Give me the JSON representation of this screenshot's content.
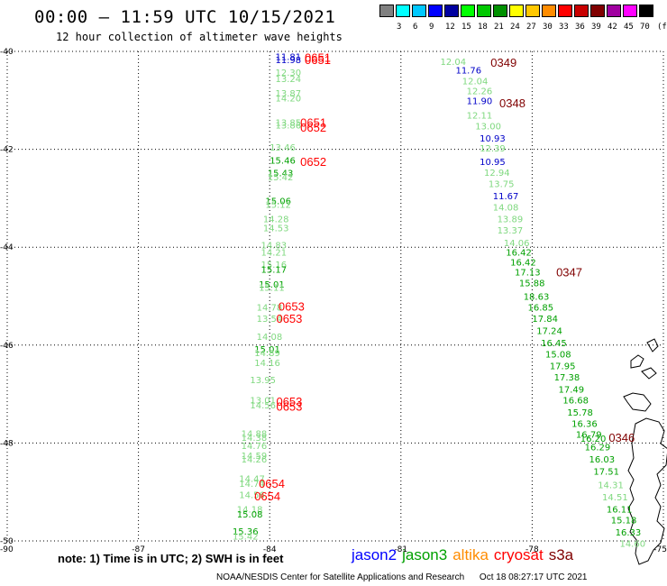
{
  "header": {
    "title": "00:00 – 11:59 UTC 10/15/2021",
    "subtitle": "12 hour collection of altimeter wave heights"
  },
  "color_scale": {
    "unit": "(ft)",
    "levels": [
      {
        "label": "",
        "color": "#808080"
      },
      {
        "label": "3",
        "color": "#00ffff"
      },
      {
        "label": "6",
        "color": "#00c8ff"
      },
      {
        "label": "9",
        "color": "#0000ff"
      },
      {
        "label": "12",
        "color": "#0000a0"
      },
      {
        "label": "15",
        "color": "#00ff00"
      },
      {
        "label": "18",
        "color": "#00c800"
      },
      {
        "label": "21",
        "color": "#009000"
      },
      {
        "label": "24",
        "color": "#ffff00"
      },
      {
        "label": "27",
        "color": "#ffc800"
      },
      {
        "label": "30",
        "color": "#ff8c00"
      },
      {
        "label": "33",
        "color": "#ff0000"
      },
      {
        "label": "36",
        "color": "#c80000"
      },
      {
        "label": "39",
        "color": "#800000"
      },
      {
        "label": "42",
        "color": "#a000a0"
      },
      {
        "label": "45",
        "color": "#ff00ff"
      },
      {
        "label": "70",
        "color": "#000000"
      }
    ]
  },
  "axes": {
    "x_ticks": [
      "-90",
      "-87",
      "-84",
      "-81",
      "-78",
      "-75"
    ],
    "y_ticks": [
      "-40",
      "-42",
      "-44",
      "-46",
      "-48",
      "-50"
    ],
    "x_values": [
      -90,
      -87,
      -84,
      -81,
      -78,
      -75
    ],
    "y_values": [
      -40,
      -42,
      -44,
      -46,
      -48,
      -50
    ]
  },
  "track_points": [
    {
      "lon": -83.87,
      "lat": -40.1,
      "label": "11.81",
      "color": "#0000c8"
    },
    {
      "lon": -83.87,
      "lat": -40.17,
      "label": "11.98",
      "color": "#0000c8"
    },
    {
      "lon": -83.87,
      "lat": -40.42,
      "label": "12.30",
      "color": "#7fd87f"
    },
    {
      "lon": -83.87,
      "lat": -40.55,
      "label": "13.24",
      "color": "#7fd87f"
    },
    {
      "lon": -83.87,
      "lat": -40.85,
      "label": "13.87",
      "color": "#7fd87f"
    },
    {
      "lon": -83.87,
      "lat": -40.95,
      "label": "14.20",
      "color": "#7fd87f"
    },
    {
      "lon": -83.87,
      "lat": -41.45,
      "label": "13.85",
      "color": "#7fd87f"
    },
    {
      "lon": -83.87,
      "lat": -41.5,
      "label": "13.86",
      "color": "#7fd87f"
    },
    {
      "lon": -84.0,
      "lat": -41.95,
      "label": "13.46",
      "color": "#7fd87f"
    },
    {
      "lon": -84.0,
      "lat": -42.22,
      "label": "15.46",
      "color": "#00a000"
    },
    {
      "lon": -84.05,
      "lat": -42.48,
      "label": "15.43",
      "color": "#00a000"
    },
    {
      "lon": -84.05,
      "lat": -42.56,
      "label": "15.42",
      "color": "#7fd87f"
    },
    {
      "lon": -84.1,
      "lat": -43.05,
      "label": "15.06",
      "color": "#00a000"
    },
    {
      "lon": -84.1,
      "lat": -43.12,
      "label": "15.12",
      "color": "#7fd87f"
    },
    {
      "lon": -84.15,
      "lat": -43.42,
      "label": "14.28",
      "color": "#7fd87f"
    },
    {
      "lon": -84.15,
      "lat": -43.6,
      "label": "14.53",
      "color": "#7fd87f"
    },
    {
      "lon": -84.2,
      "lat": -43.95,
      "label": "14.83",
      "color": "#7fd87f"
    },
    {
      "lon": -84.2,
      "lat": -44.1,
      "label": "14.21",
      "color": "#7fd87f"
    },
    {
      "lon": -84.2,
      "lat": -44.35,
      "label": "15.16",
      "color": "#7fd87f"
    },
    {
      "lon": -84.2,
      "lat": -44.45,
      "label": "15.17",
      "color": "#00a000"
    },
    {
      "lon": -84.25,
      "lat": -44.75,
      "label": "15.01",
      "color": "#00a000"
    },
    {
      "lon": -84.25,
      "lat": -44.82,
      "label": "15.11",
      "color": "#7fd87f"
    },
    {
      "lon": -84.3,
      "lat": -45.22,
      "label": "14.78",
      "color": "#7fd87f"
    },
    {
      "lon": -84.3,
      "lat": -45.45,
      "label": "13.54",
      "color": "#7fd87f"
    },
    {
      "lon": -84.3,
      "lat": -45.82,
      "label": "14.08",
      "color": "#7fd87f"
    },
    {
      "lon": -84.35,
      "lat": -46.08,
      "label": "15.01",
      "color": "#00a000"
    },
    {
      "lon": -84.35,
      "lat": -46.15,
      "label": "14.89",
      "color": "#7fd87f"
    },
    {
      "lon": -84.35,
      "lat": -46.35,
      "label": "14.16",
      "color": "#7fd87f"
    },
    {
      "lon": -84.45,
      "lat": -46.7,
      "label": "13.95",
      "color": "#7fd87f"
    },
    {
      "lon": -84.45,
      "lat": -47.12,
      "label": "13.01",
      "color": "#7fd87f"
    },
    {
      "lon": -84.45,
      "lat": -47.22,
      "label": "14.56",
      "color": "#7fd87f"
    },
    {
      "lon": -84.65,
      "lat": -47.8,
      "label": "14.88",
      "color": "#7fd87f"
    },
    {
      "lon": -84.65,
      "lat": -47.88,
      "label": "14.38",
      "color": "#7fd87f"
    },
    {
      "lon": -84.65,
      "lat": -48.05,
      "label": "14.76",
      "color": "#7fd87f"
    },
    {
      "lon": -84.65,
      "lat": -48.25,
      "label": "14.59",
      "color": "#7fd87f"
    },
    {
      "lon": -84.65,
      "lat": -48.32,
      "label": "14.26",
      "color": "#7fd87f"
    },
    {
      "lon": -84.7,
      "lat": -48.72,
      "label": "14.47",
      "color": "#7fd87f"
    },
    {
      "lon": -84.7,
      "lat": -48.82,
      "label": "14.74",
      "color": "#7fd87f"
    },
    {
      "lon": -84.7,
      "lat": -49.05,
      "label": "14.56",
      "color": "#7fd87f"
    },
    {
      "lon": -84.75,
      "lat": -49.35,
      "label": "14.18",
      "color": "#7fd87f"
    },
    {
      "lon": -84.75,
      "lat": -49.45,
      "label": "15.08",
      "color": "#00a000"
    },
    {
      "lon": -84.85,
      "lat": -49.8,
      "label": "15.36",
      "color": "#00a000"
    },
    {
      "lon": -84.85,
      "lat": -49.9,
      "label": "15.42",
      "color": "#7fd87f"
    },
    {
      "lon": -80.1,
      "lat": -40.2,
      "label": "12.04",
      "color": "#7fd87f"
    },
    {
      "lon": -79.75,
      "lat": -40.38,
      "label": "11.76",
      "color": "#0000c8"
    },
    {
      "lon": -79.6,
      "lat": -40.6,
      "label": "12.04",
      "color": "#7fd87f"
    },
    {
      "lon": -79.5,
      "lat": -40.8,
      "label": "12.26",
      "color": "#7fd87f"
    },
    {
      "lon": -79.5,
      "lat": -41.0,
      "label": "11.90",
      "color": "#0000c8"
    },
    {
      "lon": -79.5,
      "lat": -41.3,
      "label": "12.11",
      "color": "#7fd87f"
    },
    {
      "lon": -79.3,
      "lat": -41.52,
      "label": "13.00",
      "color": "#7fd87f"
    },
    {
      "lon": -79.2,
      "lat": -41.77,
      "label": "10.93",
      "color": "#0000c8"
    },
    {
      "lon": -79.2,
      "lat": -41.97,
      "label": "12.39",
      "color": "#7fd87f"
    },
    {
      "lon": -79.2,
      "lat": -42.25,
      "label": "10.95",
      "color": "#0000c8"
    },
    {
      "lon": -79.1,
      "lat": -42.47,
      "label": "12.94",
      "color": "#7fd87f"
    },
    {
      "lon": -79.0,
      "lat": -42.7,
      "label": "13.75",
      "color": "#7fd87f"
    },
    {
      "lon": -78.9,
      "lat": -42.95,
      "label": "11.67",
      "color": "#0000c8"
    },
    {
      "lon": -78.9,
      "lat": -43.18,
      "label": "14.08",
      "color": "#7fd87f"
    },
    {
      "lon": -78.8,
      "lat": -43.42,
      "label": "13.89",
      "color": "#7fd87f"
    },
    {
      "lon": -78.8,
      "lat": -43.65,
      "label": "13.37",
      "color": "#7fd87f"
    },
    {
      "lon": -78.65,
      "lat": -43.9,
      "label": "14.06",
      "color": "#7fd87f"
    },
    {
      "lon": -78.6,
      "lat": -44.1,
      "label": "16.42",
      "color": "#00a000"
    },
    {
      "lon": -78.5,
      "lat": -44.3,
      "label": "16.42",
      "color": "#00a000"
    },
    {
      "lon": -78.4,
      "lat": -44.5,
      "label": "17.13",
      "color": "#00a000"
    },
    {
      "lon": -78.3,
      "lat": -44.72,
      "label": "15.88",
      "color": "#00a000"
    },
    {
      "lon": -78.2,
      "lat": -45.0,
      "label": "18.63",
      "color": "#00a000"
    },
    {
      "lon": -78.1,
      "lat": -45.22,
      "label": "16.85",
      "color": "#00a000"
    },
    {
      "lon": -78.0,
      "lat": -45.45,
      "label": "17.84",
      "color": "#00a000"
    },
    {
      "lon": -77.9,
      "lat": -45.7,
      "label": "17.24",
      "color": "#00a000"
    },
    {
      "lon": -77.8,
      "lat": -45.95,
      "label": "16.45",
      "color": "#00a000"
    },
    {
      "lon": -77.7,
      "lat": -46.18,
      "label": "15.08",
      "color": "#00a000"
    },
    {
      "lon": -77.6,
      "lat": -46.42,
      "label": "17.95",
      "color": "#00a000"
    },
    {
      "lon": -77.5,
      "lat": -46.65,
      "label": "17.38",
      "color": "#00a000"
    },
    {
      "lon": -77.4,
      "lat": -46.9,
      "label": "17.49",
      "color": "#00a000"
    },
    {
      "lon": -77.3,
      "lat": -47.12,
      "label": "16.68",
      "color": "#00a000"
    },
    {
      "lon": -77.2,
      "lat": -47.37,
      "label": "15.78",
      "color": "#00a000"
    },
    {
      "lon": -77.1,
      "lat": -47.6,
      "label": "16.36",
      "color": "#00a000"
    },
    {
      "lon": -77.0,
      "lat": -47.82,
      "label": "16.79",
      "color": "#00a000"
    },
    {
      "lon": -76.9,
      "lat": -47.9,
      "label": "16.20",
      "color": "#00a000"
    },
    {
      "lon": -76.8,
      "lat": -48.08,
      "label": "16.29",
      "color": "#00a000"
    },
    {
      "lon": -76.7,
      "lat": -48.32,
      "label": "16.03",
      "color": "#00a000"
    },
    {
      "lon": -76.6,
      "lat": -48.57,
      "label": "17.51",
      "color": "#00a000"
    },
    {
      "lon": -76.5,
      "lat": -48.85,
      "label": "14.31",
      "color": "#7fd87f"
    },
    {
      "lon": -76.4,
      "lat": -49.1,
      "label": "14.51",
      "color": "#7fd87f"
    },
    {
      "lon": -76.3,
      "lat": -49.35,
      "label": "16.11",
      "color": "#00a000"
    },
    {
      "lon": -76.2,
      "lat": -49.57,
      "label": "15.18",
      "color": "#00a000"
    },
    {
      "lon": -76.1,
      "lat": -49.82,
      "label": "16.33",
      "color": "#00a000"
    },
    {
      "lon": -76.0,
      "lat": -50.05,
      "label": "14.60",
      "color": "#7fd87f"
    }
  ],
  "pass_times": [
    {
      "lon": -83.2,
      "lat": -40.12,
      "label": "0651",
      "color": "#ff0000"
    },
    {
      "lon": -83.2,
      "lat": -40.17,
      "label": "0651",
      "color": "#ff0000"
    },
    {
      "lon": -83.3,
      "lat": -41.45,
      "label": "0651",
      "color": "#ff0000"
    },
    {
      "lon": -83.3,
      "lat": -41.55,
      "label": "0652",
      "color": "#ff0000"
    },
    {
      "lon": -83.3,
      "lat": -42.25,
      "label": "0652",
      "color": "#ff0000"
    },
    {
      "lon": -83.8,
      "lat": -45.2,
      "label": "0653",
      "color": "#ff0000"
    },
    {
      "lon": -83.85,
      "lat": -45.45,
      "label": "0653",
      "color": "#ff0000"
    },
    {
      "lon": -83.85,
      "lat": -47.15,
      "label": "0653",
      "color": "#ff0000"
    },
    {
      "lon": -83.85,
      "lat": -47.25,
      "label": "0653",
      "color": "#ff0000"
    },
    {
      "lon": -84.25,
      "lat": -48.82,
      "label": "0654",
      "color": "#ff0000"
    },
    {
      "lon": -84.35,
      "lat": -49.08,
      "label": "0654",
      "color": "#ff0000"
    },
    {
      "lon": -78.95,
      "lat": -40.22,
      "label": "0349",
      "color": "#800000"
    },
    {
      "lon": -78.75,
      "lat": -41.05,
      "label": "0348",
      "color": "#800000"
    },
    {
      "lon": -77.45,
      "lat": -44.5,
      "label": "0347",
      "color": "#800000"
    },
    {
      "lon": -76.25,
      "lat": -47.88,
      "label": "0346",
      "color": "#800000"
    }
  ],
  "footer": {
    "note": "note:  1) Time is in UTC;  2) SWH is in feet",
    "satellites": [
      {
        "name": "jason2",
        "color": "#0000ff"
      },
      {
        "name": "jason3",
        "color": "#00a000"
      },
      {
        "name": "altika",
        "color": "#ff8c00"
      },
      {
        "name": "cryosat",
        "color": "#ff0000"
      },
      {
        "name": "s3a",
        "color": "#800000"
      }
    ],
    "credit": "NOAA/NESDIS Center for Satellite Applications and Research",
    "generated": "Oct 18 08:27:17 UTC 2021"
  }
}
